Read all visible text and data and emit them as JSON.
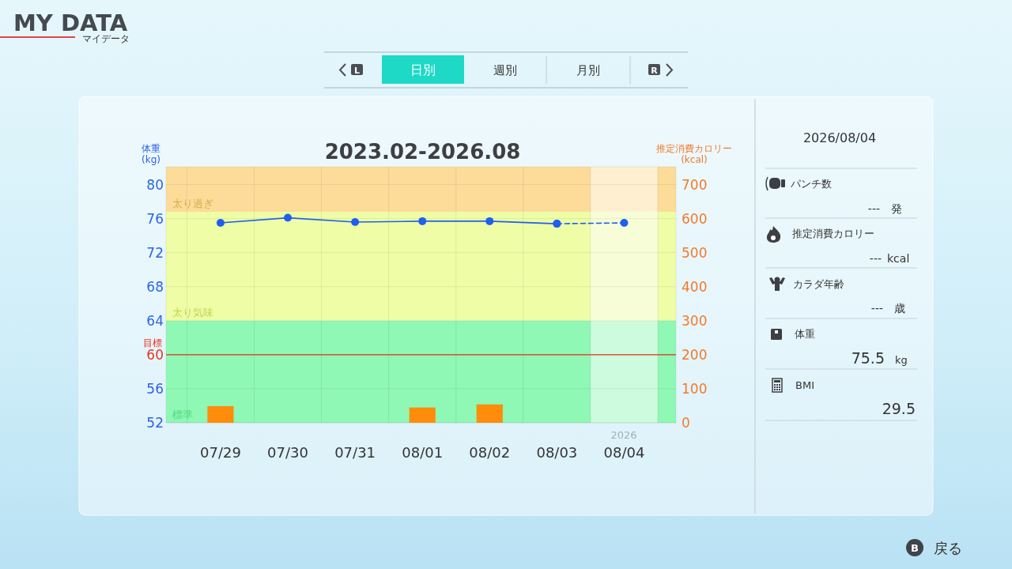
{
  "chart_data": [
    {
      "type": "line",
      "title": "2023.02-2026.08",
      "ylabel": "体重\n(kg)",
      "y2label": "推定消費カロリー\n(kcal)",
      "categories": [
        "07/29",
        "07/30",
        "07/31",
        "08/01",
        "08/02",
        "08/03",
        "08/04"
      ],
      "series": [
        {
          "type": "bar",
          "axis": "y2",
          "color": "#ff8c0a",
          "values": [
            49,
            null,
            null,
            45,
            54,
            null,
            null
          ]
        },
        {
          "type": "line",
          "color": "#1f5ff0",
          "line_style": "solid",
          "values": [
            75.5,
            76.1,
            75.6,
            75.7,
            75.7,
            75.4,
            null
          ]
        },
        {
          "type": "line",
          "color": "#1f5ff0",
          "line_style": "dashed",
          "values": [
            null,
            null,
            null,
            null,
            null,
            75.4,
            75.5
          ]
        }
      ],
      "marker": "circle",
      "ylim": [
        52,
        82.1
      ],
      "yticks": [
        52,
        56,
        60,
        64,
        68,
        72,
        76,
        80
      ],
      "y2lim": [
        0,
        752.5
      ],
      "y2ticks": [
        0,
        100,
        200,
        300,
        400,
        500,
        600,
        700
      ],
      "grid": true,
      "bands": [
        {
          "axis": "y",
          "from": 52,
          "to": 64,
          "label": "標準",
          "color": "#8ef8b4"
        },
        {
          "axis": "y",
          "from": 64,
          "to": 76.8,
          "label": "太り気味",
          "color": "#eefda6"
        },
        {
          "axis": "y",
          "from": 76.8,
          "to": 82.1,
          "label": "太り過ぎ",
          "color": "#fcdc98"
        },
        {
          "axis": "x",
          "from": "08/04",
          "to": "08/04",
          "color": "#ffffff"
        }
      ],
      "ref_lines": [
        {
          "axis": "y",
          "value": 60,
          "label": "目標",
          "color": "#e8321e"
        }
      ],
      "annotations": [
        "MY DATA",
        "マイデータ",
        "L",
        "日別",
        "週別",
        "月別",
        "R",
        "B",
        "戻る",
        "2026"
      ]
    },
    {
      "type": "other",
      "title": "2026/08/04",
      "annotations": [
        "パンチ数",
        "---",
        "発",
        "推定消費カロリー",
        "---",
        "kcal",
        "カラダ年齢",
        "---",
        "歳",
        "体重",
        "75.5",
        "kg",
        "BMI",
        "29.5"
      ]
    }
  ]
}
